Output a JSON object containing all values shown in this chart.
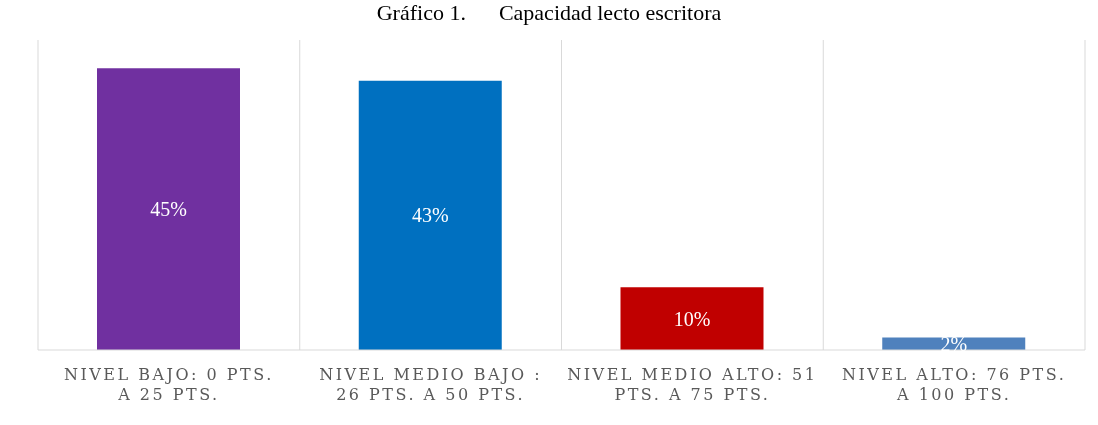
{
  "chart_data": {
    "type": "bar",
    "title": "Gráfico 1.      Capacidad lecto escritora",
    "categories": [
      "NIVEL BAJO:  0 PTS. A 25 PTS.",
      "NIVEL MEDIO BAJO : 26 PTS. A 50 PTS.",
      "NIVEL MEDIO ALTO: 51 PTS. A 75 PTS.",
      "NIVEL ALTO: 76 PTS. A 100 PTS."
    ],
    "values": [
      45,
      43,
      10,
      2
    ],
    "colors": [
      "#7030a0",
      "#0070c0",
      "#c00000",
      "#4f81bd"
    ],
    "value_labels": [
      "45%",
      "43%",
      "10%",
      "2%"
    ],
    "grid": "x"
  }
}
